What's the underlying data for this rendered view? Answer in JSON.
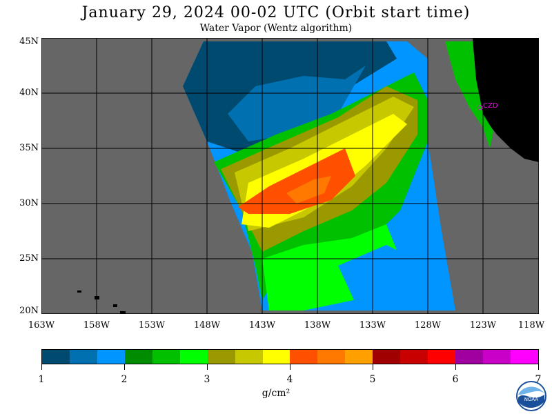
{
  "title": "January 29, 2024   00-02 UTC  (Orbit start time)",
  "subtitle": "Water Vapor (Wentz algorithm)",
  "lat_labels": [
    "45N",
    "40N",
    "35N",
    "30N",
    "25N",
    "20N"
  ],
  "lon_labels": [
    "163W",
    "158W",
    "153W",
    "148W",
    "143W",
    "138W",
    "133W",
    "128W",
    "123W",
    "118W"
  ],
  "station_label": "CZD",
  "colorbar": {
    "ticks": [
      "1",
      "2",
      "3",
      "4",
      "5",
      "6",
      "7"
    ],
    "units": "g/cm²",
    "colors": [
      "#004a70",
      "#0070b0",
      "#0095ff",
      "#008c00",
      "#00c000",
      "#00ff00",
      "#9a9a00",
      "#c8c800",
      "#ffff00",
      "#ff5000",
      "#ff7800",
      "#ffa000",
      "#a00000",
      "#c80000",
      "#ff0000",
      "#a000a0",
      "#c800c8",
      "#ff00ff"
    ]
  },
  "map_colors": {
    "ocean_nodata": "#666666",
    "land": "#000000",
    "grid": "#000000",
    "station": "#ff00ff"
  },
  "logo_text": "NOAA"
}
